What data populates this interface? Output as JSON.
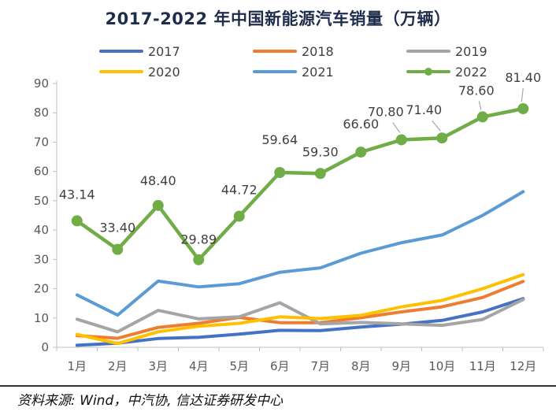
{
  "title": "2017-2022 年中国新能源汽车销量（万辆）",
  "source": "资料来源: Wind，中汽协, 信达证券研发中心",
  "chart_data": {
    "type": "line",
    "title": "2017-2022 年中国新能源汽车销量（万辆）",
    "xlabel": "",
    "ylabel": "",
    "categories": [
      "1月",
      "2月",
      "3月",
      "4月",
      "5月",
      "6月",
      "7月",
      "8月",
      "9月",
      "10月",
      "11月",
      "12月"
    ],
    "ylim": [
      0,
      90
    ],
    "yticks": [
      0,
      10,
      20,
      30,
      40,
      50,
      60,
      70,
      80,
      90
    ],
    "series": [
      {
        "name": "2017",
        "color": "#4472c4",
        "values": [
          0.7,
          1.4,
          3.0,
          3.4,
          4.5,
          5.8,
          5.7,
          6.9,
          7.9,
          9.2,
          12.1,
          16.6
        ]
      },
      {
        "name": "2018",
        "color": "#ed7d31",
        "values": [
          4.0,
          3.1,
          6.8,
          8.2,
          10.2,
          8.4,
          8.4,
          10.1,
          12.1,
          13.8,
          17.0,
          22.5
        ]
      },
      {
        "name": "2019",
        "color": "#a5a5a5",
        "values": [
          9.6,
          5.3,
          12.6,
          9.7,
          10.4,
          15.2,
          8.0,
          8.5,
          8.0,
          7.5,
          9.5,
          16.3
        ]
      },
      {
        "name": "2020",
        "color": "#ffc000",
        "values": [
          4.4,
          1.3,
          5.3,
          7.2,
          8.2,
          10.4,
          9.8,
          10.9,
          13.8,
          16.0,
          20.0,
          24.8
        ]
      },
      {
        "name": "2021",
        "color": "#5b9bd5",
        "values": [
          17.9,
          11.0,
          22.6,
          20.6,
          21.7,
          25.6,
          27.1,
          32.1,
          35.7,
          38.3,
          45.0,
          53.1
        ]
      },
      {
        "name": "2022",
        "color": "#70ad47",
        "markers": true,
        "values": [
          43.14,
          33.4,
          48.4,
          29.89,
          44.72,
          59.64,
          59.3,
          66.6,
          70.8,
          71.4,
          78.6,
          81.4
        ],
        "labels": [
          "43.14",
          "33.40",
          "48.40",
          "29.89",
          "44.72",
          "59.64",
          "59.30",
          "66.60",
          "70.80",
          "71.40",
          "78.60",
          "81.40"
        ]
      }
    ],
    "legend": "top",
    "grid": false
  }
}
